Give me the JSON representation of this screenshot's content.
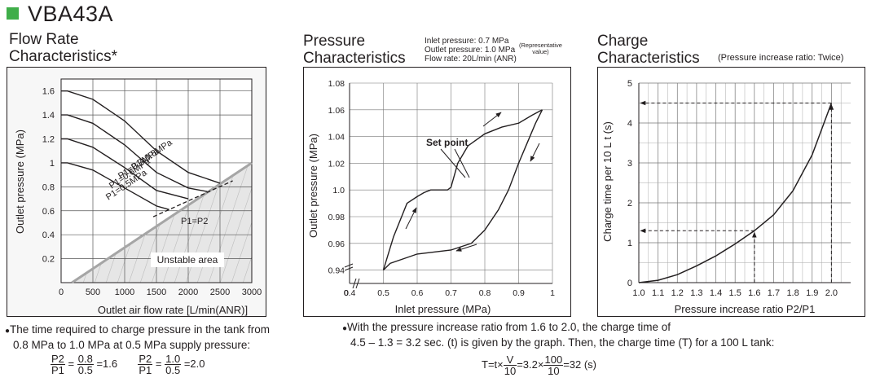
{
  "header": {
    "model": "VBA43A"
  },
  "sections": {
    "flow": {
      "title_line1": "Flow Rate",
      "title_line2": "Characteristics*"
    },
    "pressure": {
      "title_line1": "Pressure",
      "title_line2": "Characteristics",
      "cond1": "Inlet pressure: 0.7 MPa",
      "cond2": "Outlet pressure: 1.0 MPa",
      "cond2_note_l1": "(Representative",
      "cond2_note_l2": "value)",
      "cond3": "Flow rate: 20L/min (ANR)"
    },
    "charge": {
      "title_line1": "Charge",
      "title_line2": "Characteristics",
      "subtitle": "(Pressure increase ratio: Twice)"
    }
  },
  "chart_data": [
    {
      "type": "line",
      "xlabel": "Outlet air flow rate [L/min(ANR)]",
      "ylabel": "Outlet pressure (MPa)",
      "xlim": [
        0,
        3000
      ],
      "ylim": [
        0,
        1.7
      ],
      "x_ticks": [
        "0",
        "500",
        "1000",
        "1500",
        "2000",
        "2500",
        "3000"
      ],
      "y_ticks": [
        "0.2",
        "0.4",
        "0.6",
        "0.8",
        "1",
        "1.2",
        "1.4",
        "1.6"
      ],
      "grid": true,
      "series": [
        {
          "name": "P1=0.8MPa",
          "start": 1.6,
          "points": [
            [
              0,
              1.6
            ],
            [
              100,
              1.6
            ],
            [
              500,
              1.53
            ],
            [
              1000,
              1.35
            ],
            [
              1500,
              1.1
            ],
            [
              2000,
              0.92
            ],
            [
              2500,
              0.83
            ]
          ]
        },
        {
          "name": "P1=0.7MPa",
          "start": 1.4,
          "points": [
            [
              0,
              1.4
            ],
            [
              100,
              1.4
            ],
            [
              500,
              1.33
            ],
            [
              1000,
              1.15
            ],
            [
              1500,
              0.92
            ],
            [
              2000,
              0.79
            ],
            [
              2300,
              0.76
            ]
          ]
        },
        {
          "name": "P1=0.6MPa",
          "start": 1.2,
          "points": [
            [
              0,
              1.2
            ],
            [
              100,
              1.2
            ],
            [
              500,
              1.13
            ],
            [
              1000,
              0.96
            ],
            [
              1500,
              0.77
            ],
            [
              2000,
              0.7
            ]
          ]
        },
        {
          "name": "P1=0.5MPa",
          "start": 1.0,
          "points": [
            [
              0,
              1.0
            ],
            [
              100,
              1.0
            ],
            [
              500,
              0.94
            ],
            [
              1000,
              0.79
            ],
            [
              1500,
              0.64
            ],
            [
              1700,
              0.61
            ]
          ]
        }
      ],
      "boundary": {
        "name": "P1=P2",
        "points": [
          [
            170,
            0
          ],
          [
            3000,
            1.0
          ]
        ]
      },
      "boundary_dashed": [
        [
          1450,
          0.55
        ],
        [
          2700,
          0.85
        ]
      ],
      "region_label": "Unstable area"
    },
    {
      "type": "line",
      "xlabel": "Inlet pressure (MPa)",
      "ylabel": "Outlet pressure (MPa)",
      "xlim": [
        0.4,
        1.0
      ],
      "ylim": [
        0.93,
        1.08
      ],
      "x_ticks": [
        "0",
        "0.4",
        "0.5",
        "0.6",
        "0.7",
        "0.8",
        "0.9",
        "1"
      ],
      "y_ticks": [
        "0.94",
        "0.96",
        "0.98",
        "1.0",
        "1.02",
        "1.04",
        "1.06",
        "1.08"
      ],
      "grid": true,
      "annotation": "Set point",
      "series": [
        {
          "name": "",
          "points": [
            [
              0.5,
              0.94
            ],
            [
              0.53,
              0.965
            ],
            [
              0.57,
              0.99
            ],
            [
              0.6,
              0.995
            ],
            [
              0.62,
              0.998
            ],
            [
              0.64,
              1.0
            ],
            [
              0.69,
              1.0
            ],
            [
              0.7,
              1.002
            ],
            [
              0.72,
              1.02
            ],
            [
              0.75,
              1.033
            ],
            [
              0.8,
              1.042
            ],
            [
              0.85,
              1.047
            ],
            [
              0.9,
              1.05
            ],
            [
              0.94,
              1.056
            ],
            [
              0.97,
              1.06
            ]
          ]
        },
        {
          "name": "",
          "points": [
            [
              0.5,
              0.94
            ],
            [
              0.52,
              0.945
            ],
            [
              0.6,
              0.952
            ],
            [
              0.7,
              0.955
            ],
            [
              0.76,
              0.96
            ],
            [
              0.8,
              0.97
            ],
            [
              0.84,
              0.985
            ],
            [
              0.87,
              1.0
            ],
            [
              0.9,
              1.02
            ],
            [
              0.92,
              1.032
            ],
            [
              0.95,
              1.05
            ],
            [
              0.97,
              1.06
            ]
          ]
        }
      ]
    },
    {
      "type": "line",
      "xlabel": "Pressure increase ratio P2/P1",
      "ylabel": "Charge time per 10 L t (s)",
      "xlim": [
        1.0,
        2.1
      ],
      "ylim": [
        0,
        5
      ],
      "x_ticks": [
        "1.0",
        "1.1",
        "1.2",
        "1.3",
        "1.4",
        "1.5",
        "1.6",
        "1.7",
        "1.8",
        "1.9",
        "2.0"
      ],
      "y_ticks": [
        "0",
        "1",
        "2",
        "3",
        "4",
        "5"
      ],
      "grid": true,
      "series": [
        {
          "name": "",
          "points": [
            [
              1.0,
              0
            ],
            [
              1.1,
              0.06
            ],
            [
              1.2,
              0.2
            ],
            [
              1.3,
              0.42
            ],
            [
              1.4,
              0.67
            ],
            [
              1.5,
              0.97
            ],
            [
              1.6,
              1.3
            ],
            [
              1.7,
              1.7
            ],
            [
              1.8,
              2.3
            ],
            [
              1.9,
              3.2
            ],
            [
              2.0,
              4.5
            ]
          ]
        }
      ],
      "guides": [
        {
          "x": 1.6,
          "y": 1.3
        },
        {
          "x": 2.0,
          "y": 4.5
        }
      ]
    }
  ],
  "notes": {
    "left_line1": "The time required to charge pressure in the tank from",
    "left_line2": "0.8 MPa to 1.0 MPa at 0.5 MPa supply pressure:",
    "f1_num": "P2",
    "f1_den": "P1",
    "f1_eq": "=",
    "f1_n2": "0.8",
    "f1_d2": "0.5",
    "f1_res": "=1.6",
    "f2_num": "P2",
    "f2_den": "P1",
    "f2_eq": "=",
    "f2_n2": "1.0",
    "f2_d2": "0.5",
    "f2_res": "=2.0",
    "right_line1": "With the pressure increase ratio from 1.6 to 2.0, the charge time of",
    "right_line2": "4.5 – 1.3 = 3.2 sec. (t) is given by the graph. Then, the charge time (T) for a 100 L tank:",
    "f3_lhs": "T=t×",
    "f3_n1": "V",
    "f3_d1": "10",
    "f3_mid": "=3.2×",
    "f3_n2": "100",
    "f3_d2": "10",
    "f3_res": "=32 (s)"
  }
}
